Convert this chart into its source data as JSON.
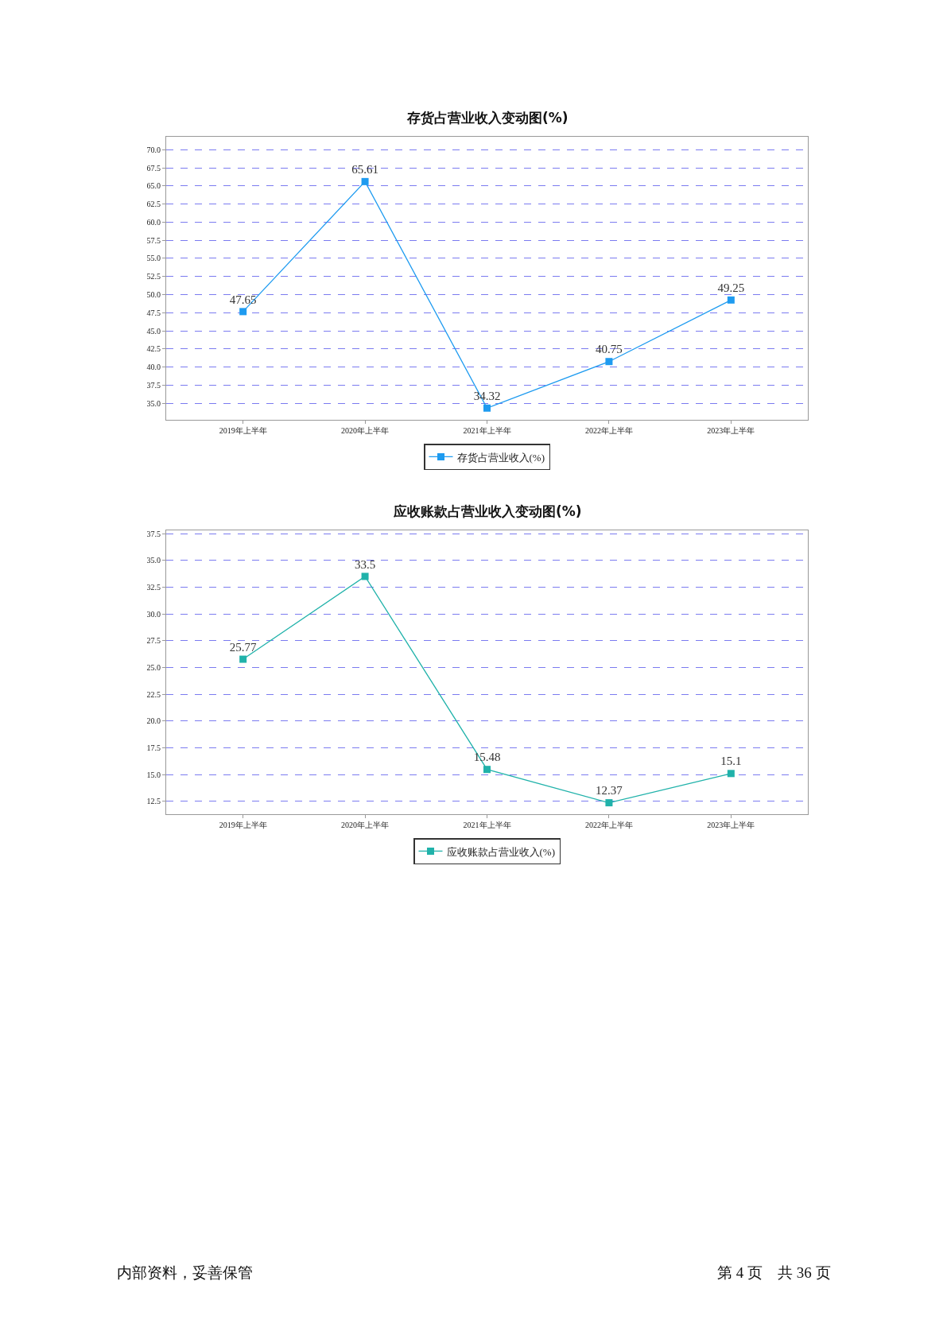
{
  "chart_data": [
    {
      "type": "line",
      "title": "存货占营业收入变动图(%)",
      "categories": [
        "2019年上半年",
        "2020年上半年",
        "2021年上半年",
        "2022年上半年",
        "2023年上半年"
      ],
      "series": [
        {
          "name": "存货占营业收入(%)",
          "color": "#1e9bf0",
          "values": [
            47.65,
            65.61,
            34.32,
            40.75,
            49.25
          ]
        }
      ],
      "ylim": [
        32.7,
        71.8
      ],
      "yticks": [
        {
          "value": 35,
          "label": "35.0"
        },
        {
          "value": 37.5,
          "label": "37.5"
        },
        {
          "value": 40,
          "label": "40.0"
        },
        {
          "value": 42.5,
          "label": "42.5"
        },
        {
          "value": 45,
          "label": "45.0"
        },
        {
          "value": 47.5,
          "label": "47.5"
        },
        {
          "value": 50,
          "label": "50.0"
        },
        {
          "value": 52.5,
          "label": "52.5"
        },
        {
          "value": 55,
          "label": "55.0"
        },
        {
          "value": 57.5,
          "label": "57.5"
        },
        {
          "value": 60,
          "label": "60.0"
        },
        {
          "value": 62.5,
          "label": "62.5"
        },
        {
          "value": 65,
          "label": "65.0"
        },
        {
          "value": 67.5,
          "label": "67.5"
        },
        {
          "value": 70,
          "label": "70.0"
        }
      ],
      "grid": "y",
      "legend": "bottom",
      "marker": "square",
      "line_style": "solid",
      "data_labels": true
    },
    {
      "type": "line",
      "title": "应收账款占营业收入变动图(%)",
      "categories": [
        "2019年上半年",
        "2020年上半年",
        "2021年上半年",
        "2022年上半年",
        "2023年上半年"
      ],
      "series": [
        {
          "name": "应收账款占营业收入(%)",
          "color": "#20b2aa",
          "values": [
            25.77,
            33.5,
            15.48,
            12.37,
            15.1
          ]
        }
      ],
      "ylim": [
        11.3,
        37.8
      ],
      "yticks": [
        {
          "value": 12.5,
          "label": "12.5"
        },
        {
          "value": 15,
          "label": "15.0"
        },
        {
          "value": 17.5,
          "label": "17.5"
        },
        {
          "value": 20,
          "label": "20.0"
        },
        {
          "value": 22.5,
          "label": "22.5"
        },
        {
          "value": 25,
          "label": "25.0"
        },
        {
          "value": 27.5,
          "label": "27.5"
        },
        {
          "value": 30,
          "label": "30.0"
        },
        {
          "value": 32.5,
          "label": "32.5"
        },
        {
          "value": 35,
          "label": "35.0"
        },
        {
          "value": 37.5,
          "label": "37.5"
        }
      ],
      "grid": "y",
      "legend": "bottom",
      "marker": "square",
      "line_style": "solid",
      "data_labels": true,
      "annotations": [
        "内部资料，妥善保管",
        "第 4 页　共 36 页"
      ]
    }
  ]
}
